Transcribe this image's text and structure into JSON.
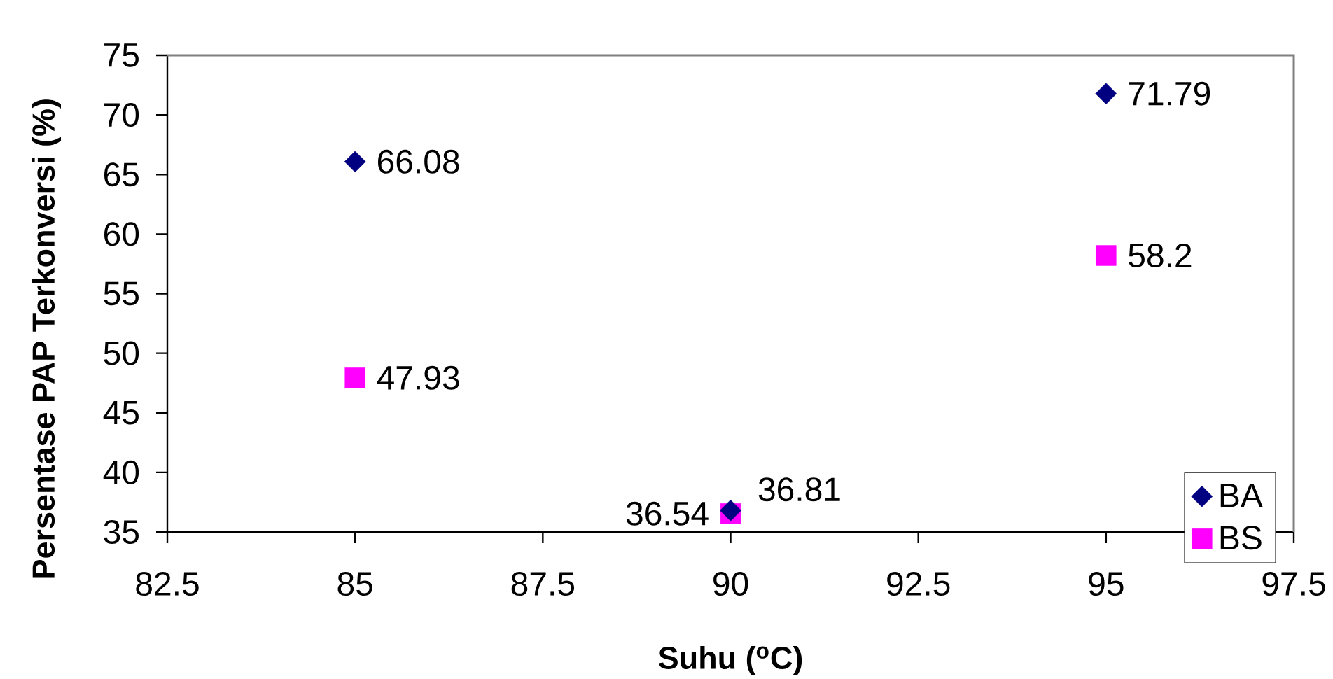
{
  "chart_data": {
    "type": "scatter",
    "xlabel": "Suhu ($^{o}$C)",
    "ylabel": "Persentase PAP Terkonversi (%)",
    "x": [
      85,
      90,
      95
    ],
    "xlim": [
      82.5,
      97.5
    ],
    "xticks": [
      82.5,
      85,
      87.5,
      90,
      92.5,
      95,
      97.5
    ],
    "ylim": [
      35,
      75
    ],
    "yticks": [
      35,
      40,
      45,
      50,
      55,
      60,
      65,
      70,
      75
    ],
    "series": [
      {
        "name": "BA",
        "color": "#000080",
        "marker": "diamond",
        "values": [
          66.08,
          36.81,
          71.79
        ]
      },
      {
        "name": "BS",
        "color": "#ff00ff",
        "marker": "square",
        "values": [
          47.93,
          36.54,
          58.2
        ]
      }
    ],
    "data_labels": true,
    "legend": "bottom right"
  }
}
